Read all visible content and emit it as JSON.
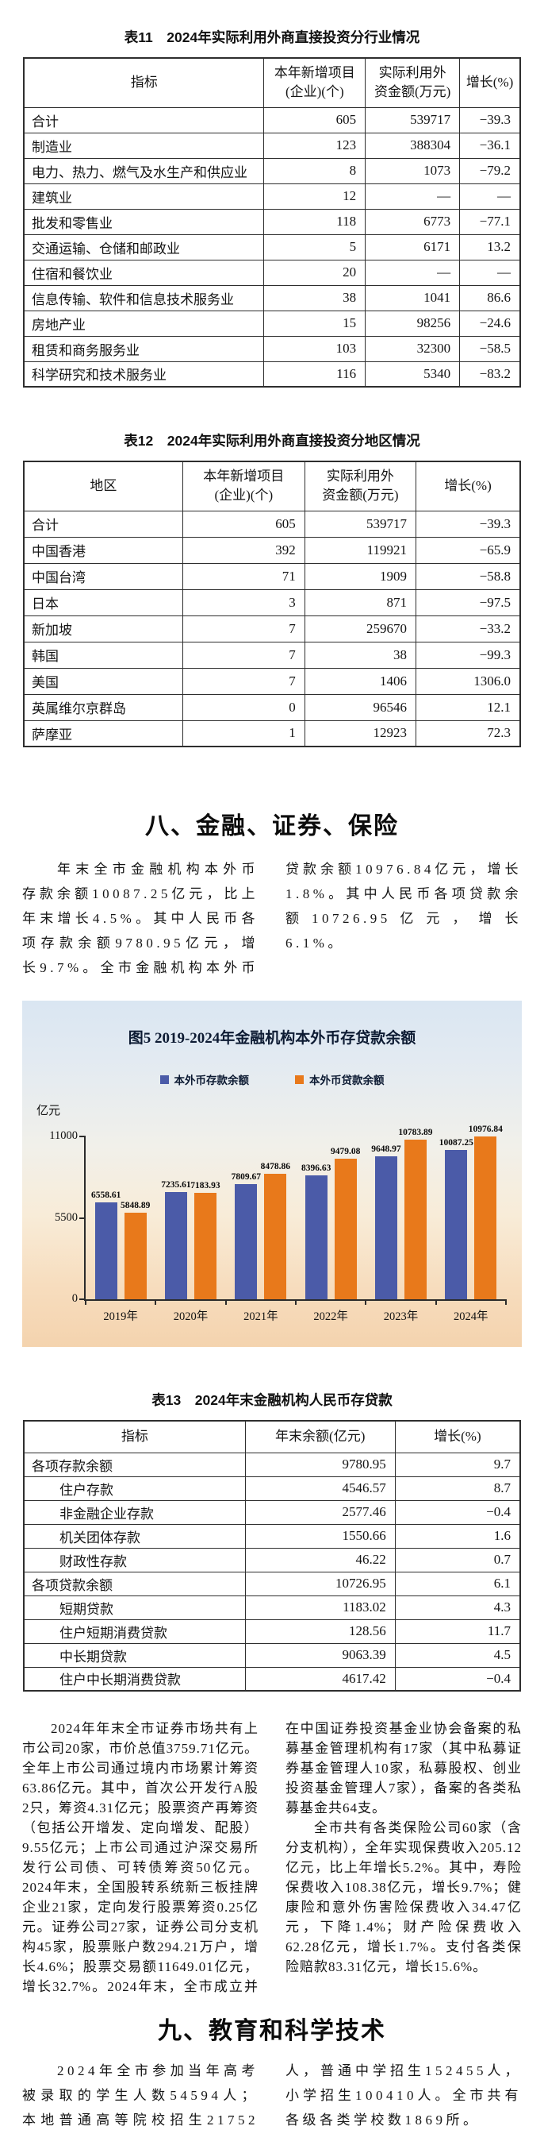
{
  "tables": [
    {
      "title": "表11　2024年实际利用外商直接投资分行业情况",
      "columns": [
        "指标",
        "本年新增项目\n(企业)(个)",
        "实际利用外\n资金额(万元)",
        "增长(%)"
      ],
      "rows": [
        {
          "label": "合计",
          "indent": false,
          "values": [
            "605",
            "539717",
            "−39.3"
          ]
        },
        {
          "label": "制造业",
          "indent": false,
          "values": [
            "123",
            "388304",
            "−36.1"
          ]
        },
        {
          "label": "电力、热力、燃气及水生产和供应业",
          "indent": false,
          "values": [
            "8",
            "1073",
            "−79.2"
          ]
        },
        {
          "label": "建筑业",
          "indent": false,
          "values": [
            "12",
            "—",
            "—"
          ]
        },
        {
          "label": "批发和零售业",
          "indent": false,
          "values": [
            "118",
            "6773",
            "−77.1"
          ]
        },
        {
          "label": "交通运输、仓储和邮政业",
          "indent": false,
          "values": [
            "5",
            "6171",
            "13.2"
          ]
        },
        {
          "label": "住宿和餐饮业",
          "indent": false,
          "values": [
            "20",
            "—",
            "—"
          ]
        },
        {
          "label": "信息传输、软件和信息技术服务业",
          "indent": false,
          "values": [
            "38",
            "1041",
            "86.6"
          ]
        },
        {
          "label": "房地产业",
          "indent": false,
          "values": [
            "15",
            "98256",
            "−24.6"
          ]
        },
        {
          "label": "租赁和商务服务业",
          "indent": false,
          "values": [
            "103",
            "32300",
            "−58.5"
          ]
        },
        {
          "label": "科学研究和技术服务业",
          "indent": false,
          "values": [
            "116",
            "5340",
            "−83.2"
          ]
        }
      ]
    },
    {
      "title": "表12　2024年实际利用外商直接投资分地区情况",
      "columns": [
        "地区",
        "本年新增项目\n(企业)(个)",
        "实际利用外\n资金额(万元)",
        "增长(%)"
      ],
      "rows": [
        {
          "label": "合计",
          "indent": false,
          "values": [
            "605",
            "539717",
            "−39.3"
          ]
        },
        {
          "label": "中国香港",
          "indent": false,
          "values": [
            "392",
            "119921",
            "−65.9"
          ]
        },
        {
          "label": "中国台湾",
          "indent": false,
          "values": [
            "71",
            "1909",
            "−58.8"
          ]
        },
        {
          "label": "日本",
          "indent": false,
          "values": [
            "3",
            "871",
            "−97.5"
          ]
        },
        {
          "label": "新加坡",
          "indent": false,
          "values": [
            "7",
            "259670",
            "−33.2"
          ]
        },
        {
          "label": "韩国",
          "indent": false,
          "values": [
            "7",
            "38",
            "−99.3"
          ]
        },
        {
          "label": "美国",
          "indent": false,
          "values": [
            "7",
            "1406",
            "1306.0"
          ]
        },
        {
          "label": "英属维尔京群岛",
          "indent": false,
          "values": [
            "0",
            "96546",
            "12.1"
          ]
        },
        {
          "label": "萨摩亚",
          "indent": false,
          "values": [
            "1",
            "12923",
            "72.3"
          ]
        }
      ]
    },
    {
      "title": "表13　2024年末金融机构人民币存贷款",
      "columns": [
        "指标",
        "年末余额(亿元)",
        "增长(%)"
      ],
      "rows": [
        {
          "label": "各项存款余额",
          "indent": false,
          "values": [
            "9780.95",
            "9.7"
          ]
        },
        {
          "label": "住户存款",
          "indent": true,
          "values": [
            "4546.57",
            "8.7"
          ]
        },
        {
          "label": "非金融企业存款",
          "indent": true,
          "values": [
            "2577.46",
            "−0.4"
          ]
        },
        {
          "label": "机关团体存款",
          "indent": true,
          "values": [
            "1550.66",
            "1.6"
          ]
        },
        {
          "label": "财政性存款",
          "indent": true,
          "values": [
            "46.22",
            "0.7"
          ]
        },
        {
          "label": "各项贷款余额",
          "indent": false,
          "values": [
            "10726.95",
            "6.1"
          ]
        },
        {
          "label": "短期贷款",
          "indent": true,
          "values": [
            "1183.02",
            "4.3"
          ]
        },
        {
          "label": "住户短期消费贷款",
          "indent": true,
          "values": [
            "128.56",
            "11.7"
          ]
        },
        {
          "label": "中长期贷款",
          "indent": true,
          "values": [
            "9063.39",
            "4.5"
          ]
        },
        {
          "label": "住户中长期消费贷款",
          "indent": true,
          "values": [
            "4617.42",
            "−0.4"
          ]
        }
      ]
    }
  ],
  "section8": {
    "heading": "八、金融、证券、保险",
    "paragraphs": [
      "年末全市金融机构本外币存款余额10087.25亿元，比上年末增长4.5%。其中人民币各项存款余额9780.95亿元，增长9.7%。全市金融机构本外币贷款余额10976.84亿元，增长1.8%。其中人民币各项贷款余额10726.95亿元，增长6.1%。"
    ]
  },
  "securities": {
    "paragraphs": [
      "2024年年末全市证券市场共有上市公司20家，市价总值3759.71亿元。全年上市公司通过境内市场累计筹资63.86亿元。其中，首次公开发行A股2只，筹资4.31亿元；股票资产再筹资（包括公开增发、定向增发、配股）9.55亿元；上市公司通过沪深交易所发行公司债、可转债筹资50亿元。2024年末，全国股转系统新三板挂牌企业21家，定向发行股票筹资0.25亿元。证券公司27家，证券公司分支机构45家，股票账户数294.21万户，增长4.6%；股票交易额11649.01亿元，增长32.7%。2024年末，全市成立并在中国证券投资基金业协会备案的私募基金管理机构有17家（其中私募证券基金管理人10家，私募股权、创业投资基金管理人7家），备案的各类私募基金共64支。",
      "全市共有各类保险公司60家（含分支机构），全年实现保费收入205.12亿元，比上年增长5.2%。其中，寿险保费收入108.38亿元，增长9.7%；健康险和意外伤害险保费收入34.47亿元，下降1.4%；财产险保费收入62.28亿元，增长1.7%。支付各类保险赔款83.31亿元，增长15.6%。"
    ]
  },
  "section9": {
    "heading": "九、教育和科学技术",
    "paragraphs": [
      "2024年全市参加当年高考被录取的学生人数54594人；本地普通高等院校招生21752人，普通中学招生152455人，小学招生100410人。全市共有各级各类学校数1869所。"
    ]
  },
  "chart_data": {
    "type": "bar",
    "title": "图5  2019-2024年金融机构本外币存贷款余额",
    "unit_label": "亿元",
    "categories": [
      "2019年",
      "2020年",
      "2021年",
      "2022年",
      "2023年",
      "2024年"
    ],
    "series": [
      {
        "name": "本外币存款余额",
        "color": "#4b5ba8",
        "values": [
          6558.61,
          7235.61,
          7809.67,
          8396.63,
          9648.97,
          10087.25
        ]
      },
      {
        "name": "本外币贷款余额",
        "color": "#e8791b",
        "values": [
          5848.89,
          7183.93,
          8478.86,
          9479.08,
          10783.89,
          10976.84
        ]
      }
    ],
    "ylim": [
      0,
      11000
    ],
    "yticks": [
      0,
      5500,
      11000
    ],
    "legend_position": "top",
    "grid": false
  }
}
